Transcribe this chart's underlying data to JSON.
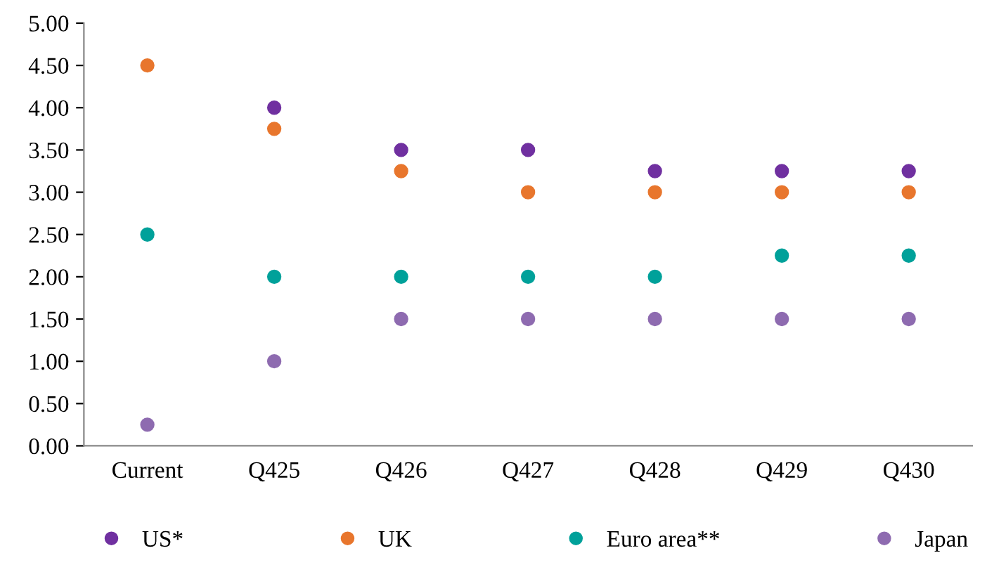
{
  "chart_data": {
    "type": "scatter",
    "categories": [
      "Current",
      "Q425",
      "Q426",
      "Q427",
      "Q428",
      "Q429",
      "Q430"
    ],
    "series": [
      {
        "name": "US*",
        "color": "#7030a0",
        "values": [
          null,
          4.0,
          3.5,
          3.5,
          3.25,
          3.25,
          3.25
        ]
      },
      {
        "name": "UK",
        "color": "#e8762d",
        "values": [
          4.5,
          3.75,
          3.25,
          3.0,
          3.0,
          3.0,
          3.0
        ]
      },
      {
        "name": "Euro area**",
        "color": "#00a19a",
        "values": [
          2.5,
          2.0,
          2.0,
          2.0,
          2.0,
          2.25,
          2.25
        ]
      },
      {
        "name": "Japan",
        "color": "#8e6bb0",
        "values": [
          0.25,
          1.0,
          1.5,
          1.5,
          1.5,
          1.5,
          1.5
        ]
      }
    ],
    "ylim": [
      0,
      5
    ],
    "yticks": [
      {
        "value": 0,
        "label": "0.00"
      },
      {
        "value": 0.5,
        "label": "0.50"
      },
      {
        "value": 1,
        "label": "1.00"
      },
      {
        "value": 1.5,
        "label": "1.50"
      },
      {
        "value": 2,
        "label": "2.00"
      },
      {
        "value": 2.5,
        "label": "2.50"
      },
      {
        "value": 3,
        "label": "3.00"
      },
      {
        "value": 3.5,
        "label": "3.50"
      },
      {
        "value": 4,
        "label": "4.00"
      },
      {
        "value": 4.5,
        "label": "4.50"
      },
      {
        "value": 5,
        "label": "5.00"
      }
    ],
    "grid": false,
    "legend": "bottom",
    "marker": "circle"
  }
}
